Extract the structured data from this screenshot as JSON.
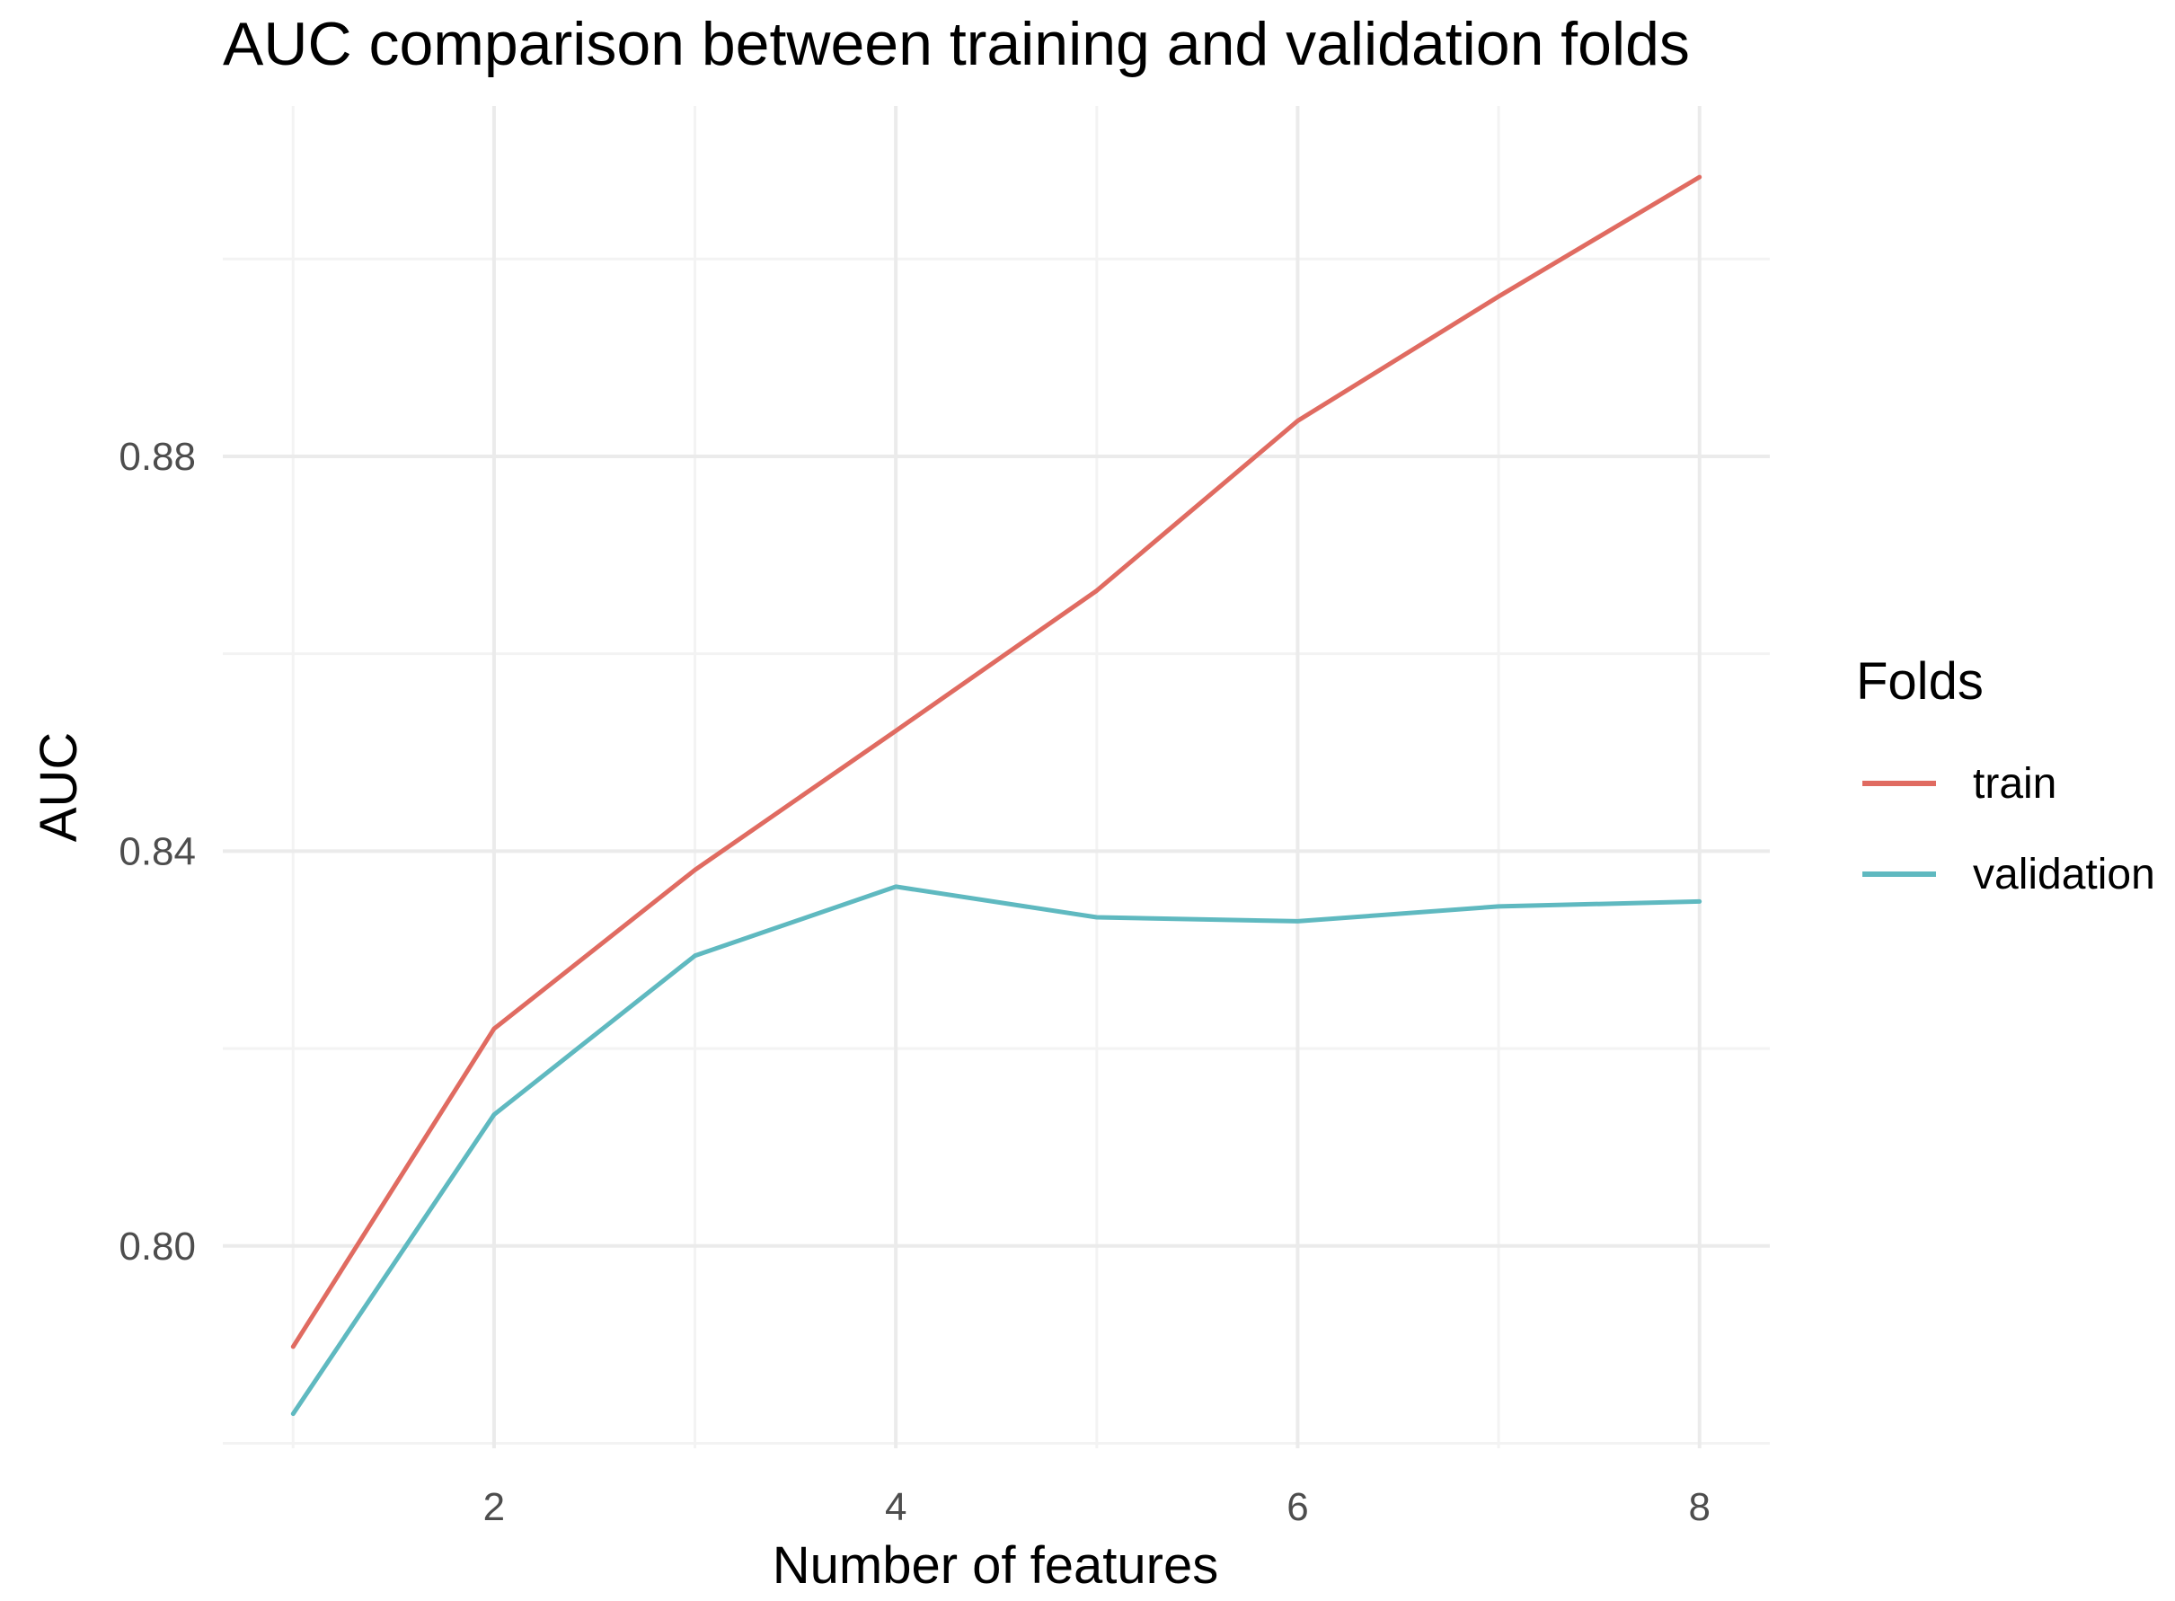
{
  "chart_data": {
    "type": "line",
    "title": "AUC comparison between training and validation folds",
    "xlabel": "Number of features",
    "ylabel": "AUC",
    "x": [
      1,
      2,
      3,
      4,
      5,
      6,
      7,
      8
    ],
    "xlim": [
      0.65,
      8.35
    ],
    "ylim": [
      0.7795,
      0.9155
    ],
    "x_ticks": [
      2,
      4,
      6,
      8
    ],
    "x_tick_labels": [
      "2",
      "4",
      "6",
      "8"
    ],
    "x_minor_ticks": [
      1,
      3,
      5,
      7
    ],
    "y_ticks": [
      0.8,
      0.84,
      0.88
    ],
    "y_tick_labels": [
      "0.80",
      "0.84",
      "0.88"
    ],
    "y_minor_ticks": [
      0.78,
      0.82,
      0.86,
      0.9
    ],
    "grid": true,
    "legend_title": "Folds",
    "legend_position": "right",
    "series": [
      {
        "name": "train",
        "color": "#E06B61",
        "values": [
          0.7898,
          0.822,
          0.8381,
          0.8522,
          0.8664,
          0.8836,
          0.8962,
          0.9083
        ]
      },
      {
        "name": "validation",
        "color": "#5FB9C0",
        "values": [
          0.783,
          0.8133,
          0.8294,
          0.8364,
          0.8333,
          0.8329,
          0.8344,
          0.8349
        ]
      }
    ]
  }
}
